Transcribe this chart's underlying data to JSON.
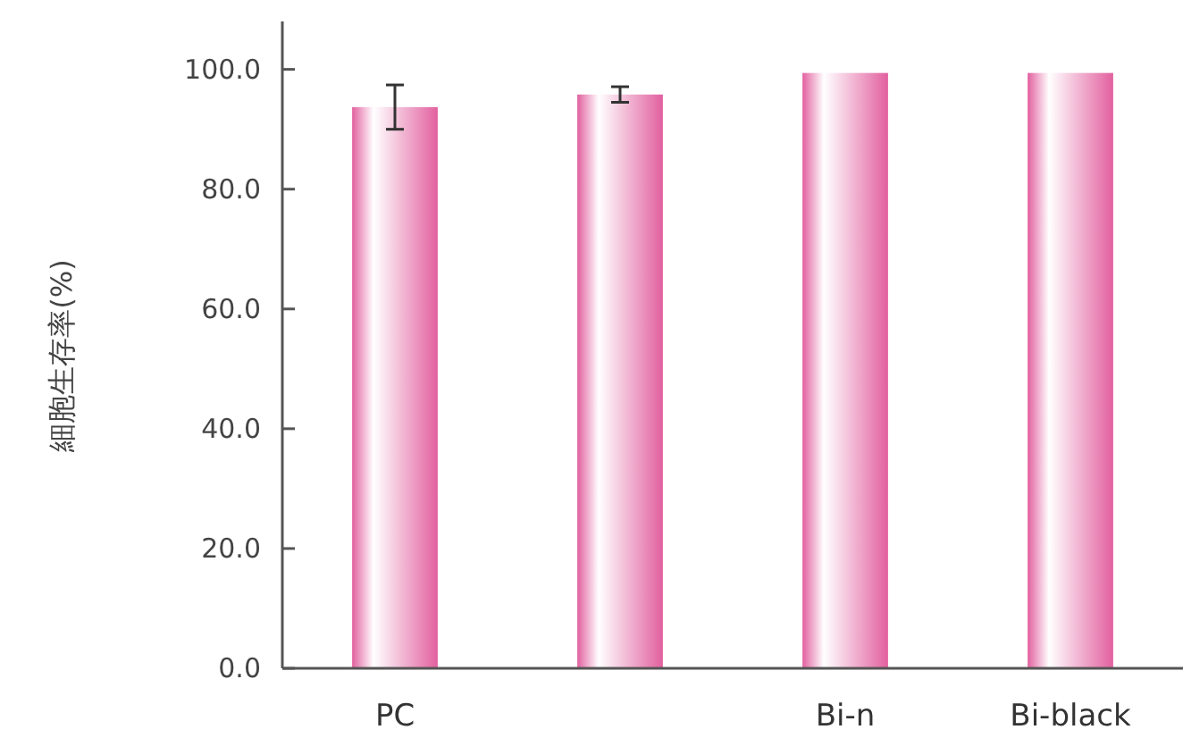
{
  "chart_data": {
    "type": "bar",
    "ylabel": "細胞生存率(%)",
    "categories": [
      "PC",
      null,
      "Bi-n",
      "Bi-black"
    ],
    "values": [
      93.7,
      95.8,
      99.4,
      99.4
    ],
    "errors": [
      3.7,
      1.3,
      null,
      null
    ],
    "color": "#e2609f",
    "ylim": [
      0,
      108
    ],
    "yticks": [
      {
        "value": 0,
        "label": "0.0"
      },
      {
        "value": 20,
        "label": "20.0"
      },
      {
        "value": 40,
        "label": "40.0"
      },
      {
        "value": 60,
        "label": "60.0"
      },
      {
        "value": 80,
        "label": "80.0"
      },
      {
        "value": 100,
        "label": "100.0"
      }
    ]
  }
}
